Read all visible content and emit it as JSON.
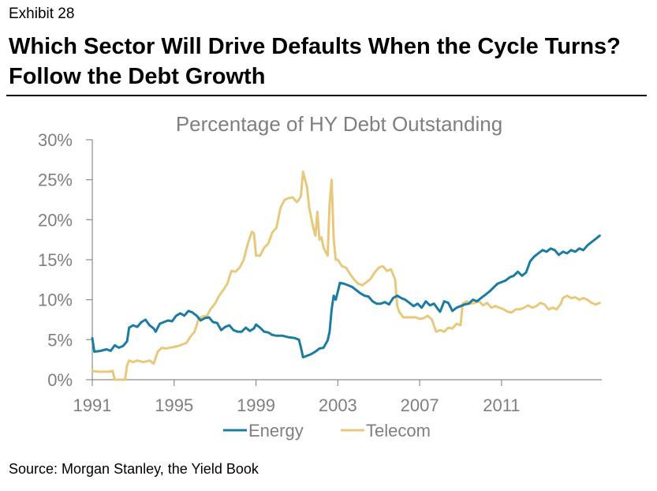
{
  "header": {
    "exhibit": "Exhibit 28",
    "title": "Which Sector Will Drive Defaults When the Cycle Turns? Follow the Debt Growth"
  },
  "footer": {
    "source": "Source:  Morgan Stanley, the Yield Book"
  },
  "chart_data": {
    "type": "line",
    "title": "Percentage of HY Debt Outstanding",
    "xlabel": "",
    "ylabel": "",
    "xlim": [
      1991,
      2015.9
    ],
    "ylim": [
      0,
      30
    ],
    "x_ticks": [
      "1991",
      "1995",
      "1999",
      "2003",
      "2007",
      "2011"
    ],
    "x_tick_values": [
      1991,
      1995,
      1999,
      2003,
      2007,
      2011
    ],
    "y_ticks": [
      "0%",
      "5%",
      "10%",
      "15%",
      "20%",
      "25%",
      "30%"
    ],
    "y_tick_values": [
      0,
      5,
      10,
      15,
      20,
      25,
      30
    ],
    "grid": false,
    "legend_position": "bottom",
    "series": [
      {
        "name": "Energy",
        "color": "#1b7ba3",
        "points": [
          [
            1991.0,
            5.2
          ],
          [
            1991.1,
            3.5
          ],
          [
            1991.4,
            3.6
          ],
          [
            1991.7,
            3.8
          ],
          [
            1991.9,
            3.6
          ],
          [
            1992.1,
            4.3
          ],
          [
            1992.3,
            4.0
          ],
          [
            1992.5,
            4.2
          ],
          [
            1992.7,
            4.8
          ],
          [
            1992.8,
            6.5
          ],
          [
            1993.0,
            6.8
          ],
          [
            1993.2,
            6.6
          ],
          [
            1993.4,
            7.2
          ],
          [
            1993.6,
            7.5
          ],
          [
            1993.8,
            6.8
          ],
          [
            1994.0,
            6.4
          ],
          [
            1994.1,
            6.0
          ],
          [
            1994.3,
            7.0
          ],
          [
            1994.5,
            7.2
          ],
          [
            1994.7,
            7.4
          ],
          [
            1994.9,
            7.3
          ],
          [
            1995.1,
            8.0
          ],
          [
            1995.3,
            8.3
          ],
          [
            1995.5,
            8.0
          ],
          [
            1995.7,
            8.6
          ],
          [
            1995.9,
            8.4
          ],
          [
            1996.1,
            8.0
          ],
          [
            1996.3,
            7.4
          ],
          [
            1996.5,
            7.7
          ],
          [
            1996.7,
            7.8
          ],
          [
            1996.9,
            7.2
          ],
          [
            1997.1,
            7.1
          ],
          [
            1997.3,
            6.2
          ],
          [
            1997.5,
            6.6
          ],
          [
            1997.7,
            6.8
          ],
          [
            1997.9,
            6.2
          ],
          [
            1998.1,
            6.0
          ],
          [
            1998.3,
            6.0
          ],
          [
            1998.5,
            6.5
          ],
          [
            1998.7,
            6.1
          ],
          [
            1998.9,
            6.4
          ],
          [
            1999.0,
            6.9
          ],
          [
            1999.2,
            6.5
          ],
          [
            1999.4,
            6.0
          ],
          [
            1999.6,
            5.9
          ],
          [
            1999.8,
            5.6
          ],
          [
            2000.0,
            5.5
          ],
          [
            2000.3,
            5.5
          ],
          [
            2000.6,
            5.3
          ],
          [
            2000.9,
            5.2
          ],
          [
            2001.1,
            5.0
          ],
          [
            2001.2,
            4.0
          ],
          [
            2001.3,
            2.8
          ],
          [
            2001.5,
            3.0
          ],
          [
            2001.7,
            3.2
          ],
          [
            2001.9,
            3.5
          ],
          [
            2002.1,
            3.9
          ],
          [
            2002.3,
            4.0
          ],
          [
            2002.5,
            4.9
          ],
          [
            2002.6,
            6.0
          ],
          [
            2002.7,
            8.8
          ],
          [
            2002.8,
            10.5
          ],
          [
            2002.9,
            10.0
          ],
          [
            2003.0,
            11.0
          ],
          [
            2003.1,
            12.1
          ],
          [
            2003.3,
            12.0
          ],
          [
            2003.5,
            11.8
          ],
          [
            2003.7,
            11.6
          ],
          [
            2003.9,
            11.2
          ],
          [
            2004.1,
            10.8
          ],
          [
            2004.3,
            10.5
          ],
          [
            2004.5,
            10.4
          ],
          [
            2004.7,
            9.8
          ],
          [
            2004.9,
            9.5
          ],
          [
            2005.1,
            9.5
          ],
          [
            2005.3,
            9.7
          ],
          [
            2005.5,
            9.4
          ],
          [
            2005.7,
            10.2
          ],
          [
            2005.9,
            10.5
          ],
          [
            2006.1,
            10.2
          ],
          [
            2006.3,
            10.0
          ],
          [
            2006.5,
            9.6
          ],
          [
            2006.7,
            9.2
          ],
          [
            2006.9,
            9.5
          ],
          [
            2007.1,
            9.0
          ],
          [
            2007.3,
            9.8
          ],
          [
            2007.5,
            9.3
          ],
          [
            2007.7,
            9.5
          ],
          [
            2007.9,
            8.8
          ],
          [
            2008.0,
            8.5
          ],
          [
            2008.2,
            9.8
          ],
          [
            2008.4,
            9.6
          ],
          [
            2008.6,
            8.6
          ],
          [
            2008.8,
            9.0
          ],
          [
            2009.0,
            9.2
          ],
          [
            2009.2,
            9.4
          ],
          [
            2009.4,
            9.5
          ],
          [
            2009.6,
            10.0
          ],
          [
            2009.8,
            9.8
          ],
          [
            2010.0,
            10.2
          ],
          [
            2010.2,
            10.6
          ],
          [
            2010.4,
            11.0
          ],
          [
            2010.6,
            11.5
          ],
          [
            2010.8,
            12.0
          ],
          [
            2011.0,
            12.2
          ],
          [
            2011.2,
            12.4
          ],
          [
            2011.4,
            12.8
          ],
          [
            2011.6,
            13.0
          ],
          [
            2011.8,
            13.5
          ],
          [
            2012.0,
            13.0
          ],
          [
            2012.2,
            13.4
          ],
          [
            2012.4,
            14.8
          ],
          [
            2012.6,
            15.4
          ],
          [
            2012.8,
            15.8
          ],
          [
            2013.0,
            16.2
          ],
          [
            2013.2,
            16.0
          ],
          [
            2013.4,
            16.4
          ],
          [
            2013.6,
            16.2
          ],
          [
            2013.8,
            15.6
          ],
          [
            2014.0,
            16.0
          ],
          [
            2014.2,
            15.8
          ],
          [
            2014.4,
            16.2
          ],
          [
            2014.6,
            16.0
          ],
          [
            2014.8,
            16.4
          ],
          [
            2015.0,
            16.2
          ],
          [
            2015.2,
            16.8
          ],
          [
            2015.4,
            17.2
          ],
          [
            2015.6,
            17.6
          ],
          [
            2015.8,
            18.0
          ]
        ]
      },
      {
        "name": "Telecom",
        "color": "#e8c97c",
        "points": [
          [
            1991.0,
            1.1
          ],
          [
            1991.3,
            1.0
          ],
          [
            1991.6,
            1.0
          ],
          [
            1991.8,
            1.0
          ],
          [
            1992.0,
            1.1
          ],
          [
            1992.1,
            0.0
          ],
          [
            1992.3,
            0.0
          ],
          [
            1992.6,
            0.0
          ],
          [
            1992.7,
            1.8
          ],
          [
            1992.8,
            2.4
          ],
          [
            1993.0,
            2.2
          ],
          [
            1993.2,
            2.4
          ],
          [
            1993.5,
            2.2
          ],
          [
            1993.8,
            2.4
          ],
          [
            1994.0,
            2.0
          ],
          [
            1994.2,
            3.5
          ],
          [
            1994.4,
            4.0
          ],
          [
            1994.6,
            3.9
          ],
          [
            1994.8,
            4.0
          ],
          [
            1995.0,
            4.1
          ],
          [
            1995.2,
            4.2
          ],
          [
            1995.4,
            4.4
          ],
          [
            1995.6,
            4.6
          ],
          [
            1995.8,
            5.4
          ],
          [
            1996.0,
            6.0
          ],
          [
            1996.2,
            7.6
          ],
          [
            1996.4,
            7.9
          ],
          [
            1996.6,
            8.0
          ],
          [
            1996.8,
            8.9
          ],
          [
            1997.0,
            9.5
          ],
          [
            1997.2,
            10.5
          ],
          [
            1997.4,
            11.2
          ],
          [
            1997.6,
            12.0
          ],
          [
            1997.8,
            13.6
          ],
          [
            1998.0,
            13.5
          ],
          [
            1998.2,
            14.0
          ],
          [
            1998.4,
            15.0
          ],
          [
            1998.6,
            17.0
          ],
          [
            1998.8,
            18.5
          ],
          [
            1998.9,
            18.3
          ],
          [
            1999.0,
            15.5
          ],
          [
            1999.2,
            15.5
          ],
          [
            1999.4,
            16.5
          ],
          [
            1999.6,
            17.0
          ],
          [
            1999.8,
            18.4
          ],
          [
            2000.0,
            19.0
          ],
          [
            2000.2,
            21.5
          ],
          [
            2000.4,
            22.5
          ],
          [
            2000.6,
            22.7
          ],
          [
            2000.8,
            22.8
          ],
          [
            2001.0,
            22.2
          ],
          [
            2001.1,
            22.5
          ],
          [
            2001.2,
            23.0
          ],
          [
            2001.3,
            26.0
          ],
          [
            2001.5,
            24.0
          ],
          [
            2001.6,
            21.5
          ],
          [
            2001.8,
            19.0
          ],
          [
            2001.9,
            18.0
          ],
          [
            2002.0,
            21.0
          ],
          [
            2002.1,
            17.5
          ],
          [
            2002.2,
            17.8
          ],
          [
            2002.3,
            16.5
          ],
          [
            2002.5,
            15.5
          ],
          [
            2002.6,
            22.0
          ],
          [
            2002.7,
            25.0
          ],
          [
            2002.8,
            17.5
          ],
          [
            2002.9,
            15.0
          ],
          [
            2003.0,
            15.0
          ],
          [
            2003.2,
            14.2
          ],
          [
            2003.4,
            14.0
          ],
          [
            2003.6,
            13.2
          ],
          [
            2003.8,
            12.5
          ],
          [
            2004.0,
            12.0
          ],
          [
            2004.2,
            11.8
          ],
          [
            2004.4,
            12.2
          ],
          [
            2004.6,
            12.6
          ],
          [
            2004.8,
            13.4
          ],
          [
            2005.0,
            14.0
          ],
          [
            2005.2,
            14.2
          ],
          [
            2005.4,
            13.6
          ],
          [
            2005.6,
            13.8
          ],
          [
            2005.8,
            12.5
          ],
          [
            2005.9,
            9.2
          ],
          [
            2006.0,
            8.5
          ],
          [
            2006.2,
            7.8
          ],
          [
            2006.5,
            7.8
          ],
          [
            2006.8,
            7.8
          ],
          [
            2007.0,
            7.6
          ],
          [
            2007.2,
            7.7
          ],
          [
            2007.4,
            8.0
          ],
          [
            2007.6,
            7.5
          ],
          [
            2007.8,
            6.0
          ],
          [
            2008.0,
            6.2
          ],
          [
            2008.2,
            6.0
          ],
          [
            2008.4,
            6.5
          ],
          [
            2008.6,
            6.4
          ],
          [
            2008.8,
            7.0
          ],
          [
            2009.0,
            6.8
          ],
          [
            2009.1,
            9.5
          ],
          [
            2009.3,
            9.8
          ],
          [
            2009.5,
            9.5
          ],
          [
            2009.7,
            9.6
          ],
          [
            2009.9,
            9.8
          ],
          [
            2010.1,
            9.3
          ],
          [
            2010.3,
            9.6
          ],
          [
            2010.5,
            9.0
          ],
          [
            2010.7,
            9.2
          ],
          [
            2010.9,
            9.0
          ],
          [
            2011.1,
            8.8
          ],
          [
            2011.3,
            8.5
          ],
          [
            2011.5,
            8.4
          ],
          [
            2011.7,
            8.8
          ],
          [
            2011.9,
            8.8
          ],
          [
            2012.1,
            9.0
          ],
          [
            2012.3,
            9.3
          ],
          [
            2012.5,
            9.0
          ],
          [
            2012.7,
            9.2
          ],
          [
            2012.9,
            9.6
          ],
          [
            2013.1,
            9.4
          ],
          [
            2013.3,
            8.8
          ],
          [
            2013.5,
            9.0
          ],
          [
            2013.7,
            8.8
          ],
          [
            2013.9,
            9.5
          ],
          [
            2014.0,
            10.2
          ],
          [
            2014.2,
            10.5
          ],
          [
            2014.4,
            10.2
          ],
          [
            2014.6,
            10.3
          ],
          [
            2014.8,
            10.0
          ],
          [
            2015.0,
            10.2
          ],
          [
            2015.2,
            10.0
          ],
          [
            2015.4,
            9.6
          ],
          [
            2015.6,
            9.4
          ],
          [
            2015.8,
            9.6
          ]
        ]
      }
    ]
  }
}
